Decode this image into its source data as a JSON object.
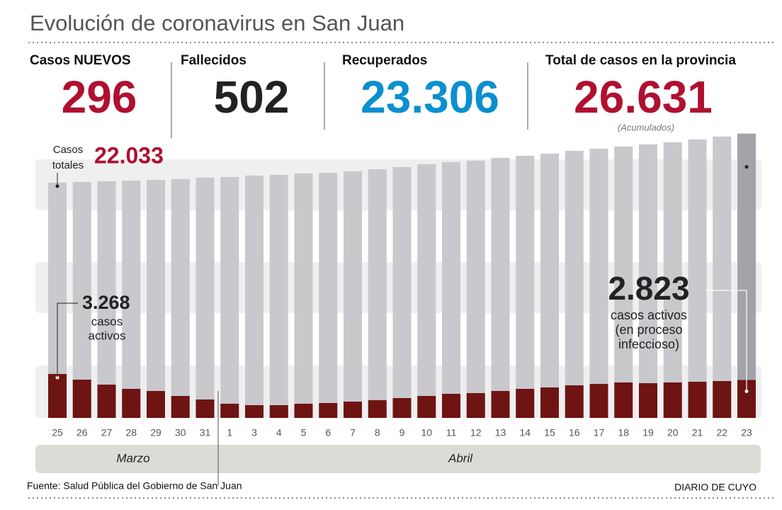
{
  "chart_data": {
    "type": "bar",
    "title": "Evolución de coronavirus en San Juan",
    "stats": [
      {
        "label": "Casos NUEVOS",
        "value": "296"
      },
      {
        "label": "Fallecidos",
        "value": "502"
      },
      {
        "label": "Recuperados",
        "value": "23.306"
      },
      {
        "label": "Total de casos en la provincia",
        "value": "26.631",
        "note": "(Acumulados)"
      }
    ],
    "categories": [
      "25",
      "26",
      "27",
      "28",
      "29",
      "30",
      "31",
      "1",
      "3",
      "4",
      "5",
      "6",
      "7",
      "8",
      "9",
      "10",
      "11",
      "12",
      "13",
      "14",
      "15",
      "16",
      "17",
      "18",
      "19",
      "20",
      "21",
      "22",
      "23"
    ],
    "series": [
      {
        "color": "#c8c8cd",
        "highlight_color": "#a3a3aa",
        "values": [
          22033,
          22100,
          22170,
          22230,
          22300,
          22370,
          22500,
          22560,
          22700,
          22760,
          22900,
          22960,
          23100,
          23290,
          23490,
          23760,
          23960,
          24090,
          24360,
          24550,
          24750,
          25020,
          25220,
          25420,
          25620,
          25820,
          26080,
          26350,
          26631
        ]
      },
      {
        "color": "#6e1412",
        "axis": "y2",
        "values": [
          3268,
          2846,
          2477,
          2161,
          2003,
          1634,
          1370,
          1054,
          949,
          949,
          1054,
          1107,
          1212,
          1318,
          1476,
          1634,
          1792,
          1845,
          2003,
          2161,
          2266,
          2424,
          2530,
          2635,
          2583,
          2635,
          2688,
          2740,
          2823
        ]
      }
    ],
    "ylim": [
      0,
      27200
    ],
    "y2lim": [
      0,
      21600
    ],
    "annotations": {
      "total_title": [
        "Casos",
        "totales"
      ],
      "total_value": "22.033",
      "active_start": "3.268",
      "active_start_text": [
        "casos",
        "activos"
      ],
      "active_end": "2.823",
      "active_end_text": [
        "casos activos",
        "(en proceso",
        "infeccioso)"
      ]
    },
    "months": [
      "Marzo",
      "Abril"
    ],
    "source": "Fuente: Salud Pública del Gobierno de San Juan",
    "brand": "DIARIO DE CUYO"
  }
}
